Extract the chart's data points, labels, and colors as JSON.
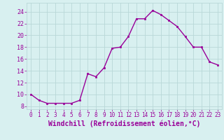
{
  "x": [
    0,
    1,
    2,
    3,
    4,
    5,
    6,
    7,
    8,
    9,
    10,
    11,
    12,
    13,
    14,
    15,
    16,
    17,
    18,
    19,
    20,
    21,
    22,
    23
  ],
  "y": [
    10,
    9,
    8.5,
    8.5,
    8.5,
    8.5,
    9,
    13.5,
    13,
    14.5,
    17.8,
    18,
    19.8,
    22.8,
    22.8,
    24.2,
    23.5,
    22.5,
    21.5,
    19.8,
    18,
    18,
    15.5,
    15
  ],
  "line_color": "#990099",
  "marker": "s",
  "markersize": 2,
  "linewidth": 1.0,
  "bg_color": "#d8f0f0",
  "grid_color": "#b8d8d8",
  "xlabel": "Windchill (Refroidissement éolien,°C)",
  "xlabel_fontsize": 7,
  "xtick_labels": [
    "0",
    "1",
    "2",
    "3",
    "4",
    "5",
    "6",
    "7",
    "8",
    "9",
    "10",
    "11",
    "12",
    "13",
    "14",
    "15",
    "16",
    "17",
    "18",
    "19",
    "20",
    "21",
    "22",
    "23"
  ],
  "ytick_labels": [
    "8",
    "10",
    "12",
    "14",
    "16",
    "18",
    "20",
    "22",
    "24"
  ],
  "yticks": [
    8,
    10,
    12,
    14,
    16,
    18,
    20,
    22,
    24
  ],
  "ylim": [
    7.5,
    25.5
  ],
  "xlim": [
    -0.5,
    23.5
  ],
  "tick_color": "#990099",
  "xtick_fontsize": 5.5,
  "ytick_fontsize": 6.0,
  "label_color": "#990099"
}
